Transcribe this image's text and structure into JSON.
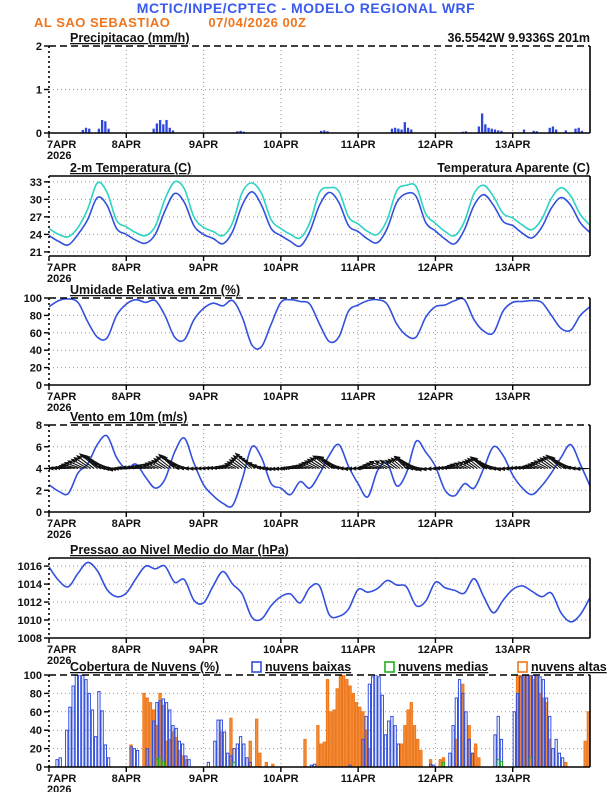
{
  "header": {
    "title": "MCTIC/INPE/CPTEC - MODELO REGIONAL WRF",
    "station": "AL SAO SEBASTIAO",
    "run_datetime": "07/04/2026 00Z",
    "location": "36.5542W 9.9336S 201m",
    "title_color": "#3b5bee",
    "subtitle_color": "#f0761e"
  },
  "x_axis": {
    "day_labels": [
      "7APR",
      "8APR",
      "9APR",
      "10APR",
      "11APR",
      "12APR",
      "13APR"
    ],
    "year": "2026",
    "hours_total": 168
  },
  "chart_data": [
    {
      "id": "precipitation",
      "type": "bar",
      "title": "Precipitacao (mm/h)",
      "right_label": {
        "text": "36.5542W 9.9336S 201m",
        "color": "#f0761e"
      },
      "ylim": [
        0,
        2
      ],
      "yticks": [
        0,
        1,
        2
      ],
      "step_hours": 1,
      "bar_color": "#2f46dd",
      "values": [
        0,
        0,
        0,
        0,
        0,
        0,
        0,
        0,
        0,
        0,
        0.07,
        0.12,
        0.1,
        0,
        0,
        0.1,
        0.3,
        0.27,
        0.1,
        0,
        0,
        0,
        0,
        0,
        0,
        0,
        0,
        0,
        0,
        0,
        0,
        0,
        0.1,
        0.22,
        0.3,
        0.2,
        0.3,
        0.12,
        0.06,
        0,
        0,
        0,
        0,
        0,
        0,
        0,
        0,
        0,
        0,
        0,
        0,
        0,
        0,
        0,
        0,
        0,
        0,
        0,
        0.04,
        0.05,
        0.03,
        0,
        0,
        0,
        0,
        0,
        0,
        0,
        0,
        0,
        0,
        0,
        0,
        0,
        0,
        0,
        0,
        0,
        0,
        0,
        0,
        0,
        0,
        0,
        0.05,
        0.06,
        0.04,
        0,
        0,
        0,
        0,
        0,
        0,
        0,
        0,
        0,
        0,
        0,
        0,
        0,
        0,
        0,
        0,
        0,
        0,
        0,
        0.1,
        0.12,
        0.1,
        0.08,
        0.25,
        0.12,
        0.08,
        0,
        0,
        0,
        0,
        0,
        0,
        0,
        0,
        0,
        0,
        0,
        0,
        0,
        0,
        0,
        0.03,
        0.04,
        0,
        0,
        0,
        0.15,
        0.45,
        0.2,
        0.12,
        0.1,
        0.08,
        0.06,
        0.05,
        0,
        0,
        0,
        0,
        0,
        0,
        0.08,
        0,
        0,
        0.05,
        0.04,
        0,
        0,
        0,
        0.12,
        0.15,
        0.08,
        0,
        0,
        0.06,
        0,
        0,
        0.1,
        0.12,
        0.05,
        0,
        0
      ]
    },
    {
      "id": "temperature",
      "type": "line",
      "title": "2-m Temperatura (C)",
      "right_label": {
        "text": "Temperatura Aparente (C)",
        "color": "#2ed3c3"
      },
      "ylim": [
        20.3,
        34
      ],
      "yticks": [
        21,
        24,
        27,
        30,
        33
      ],
      "step_hours": 3,
      "series": [
        {
          "name": "Temperatura Aparente (C)",
          "color": "#2ed3c3",
          "values": [
            25.0,
            24.0,
            23.6,
            25.2,
            28.3,
            32.8,
            31.2,
            26.4,
            25.3,
            24.3,
            23.8,
            25.4,
            30.0,
            33.0,
            31.8,
            27.0,
            25.2,
            24.5,
            23.8,
            26.0,
            31.2,
            32.8,
            31.0,
            26.5,
            25.0,
            24.0,
            23.4,
            26.0,
            31.2,
            32.0,
            31.4,
            27.0,
            25.8,
            24.5,
            24.0,
            26.5,
            31.5,
            32.4,
            32.2,
            27.5,
            25.9,
            24.5,
            23.8,
            26.2,
            31.0,
            32.4,
            30.5,
            27.6,
            26.8,
            25.6,
            24.8,
            26.6,
            30.2,
            32.0,
            30.6,
            27.4,
            25.6
          ]
        },
        {
          "name": "2-m Temperatura (C)",
          "color": "#3350dd",
          "values": [
            23.8,
            22.8,
            22.2,
            24.0,
            26.5,
            30.3,
            29.0,
            25.0,
            24.0,
            23.0,
            22.5,
            24.0,
            28.0,
            31.0,
            29.5,
            25.5,
            24.0,
            23.3,
            22.4,
            24.5,
            29.0,
            31.3,
            29.0,
            25.0,
            23.8,
            22.8,
            22.0,
            24.5,
            29.0,
            31.2,
            29.5,
            25.5,
            24.5,
            23.2,
            22.6,
            25.0,
            29.5,
            31.0,
            30.5,
            26.0,
            24.6,
            23.2,
            22.4,
            24.8,
            29.0,
            30.8,
            29.0,
            26.2,
            25.5,
            24.2,
            23.4,
            25.2,
            28.5,
            30.3,
            29.0,
            26.0,
            24.3
          ]
        }
      ]
    },
    {
      "id": "humidity",
      "type": "line",
      "title": "Umidade Relativa em 2m (%)",
      "ylim": [
        0,
        100
      ],
      "yticks": [
        0,
        20,
        40,
        60,
        80,
        100
      ],
      "step_hours": 3,
      "series": [
        {
          "name": "Umidade Relativa em 2m (%)",
          "color": "#3350dd",
          "values": [
            90,
            97,
            99,
            95,
            73,
            55,
            54,
            80,
            93,
            98,
            95,
            97,
            80,
            55,
            52,
            75,
            88,
            94,
            91,
            97,
            78,
            46,
            44,
            70,
            95,
            98,
            96,
            93,
            70,
            50,
            55,
            85,
            92,
            97,
            98,
            93,
            70,
            57,
            55,
            78,
            90,
            92,
            97,
            98,
            75,
            62,
            60,
            85,
            95,
            96,
            97,
            95,
            80,
            65,
            63,
            80,
            90
          ]
        }
      ]
    },
    {
      "id": "wind",
      "type": "line",
      "title": "Vento em 10m (m/s)",
      "ylim": [
        0,
        8
      ],
      "yticks": [
        0,
        2,
        4,
        6,
        8
      ],
      "step_hours": 3,
      "series": [
        {
          "name": "Vento em 10m (m/s)",
          "color": "#3350dd",
          "values": [
            2.5,
            1.9,
            1.7,
            3.6,
            4.4,
            6.2,
            7.0,
            5.0,
            4.0,
            4.4,
            3.2,
            2.2,
            3.0,
            5.5,
            6.8,
            4.5,
            2.5,
            1.5,
            0.8,
            0.6,
            3.0,
            6.0,
            5.0,
            2.6,
            2.2,
            1.6,
            2.8,
            2.2,
            3.5,
            5.2,
            6.2,
            4.2,
            2.6,
            1.4,
            3.8,
            4.5,
            2.4,
            3.6,
            6.5,
            5.5,
            4.2,
            2.0,
            1.5,
            2.6,
            2.2,
            4.0,
            6.0,
            5.2,
            3.4,
            2.2,
            1.6,
            2.4,
            3.6,
            5.0,
            6.2,
            4.4,
            2.4
          ]
        }
      ],
      "vectors": {
        "anchor_value": 4,
        "color": "#111111",
        "directions_deg": [
          182,
          180,
          176,
          165,
          150,
          140,
          150,
          175,
          184,
          178,
          174,
          162,
          148,
          138,
          152,
          178,
          181,
          179,
          175,
          160,
          145,
          137,
          155,
          176,
          183,
          181,
          177,
          166,
          152,
          142,
          148,
          174,
          182,
          179,
          173,
          158,
          144,
          136,
          150,
          177,
          184,
          180,
          175,
          163,
          147,
          139,
          153,
          176,
          183,
          178,
          174,
          161,
          146,
          138,
          151,
          175,
          182
        ]
      }
    },
    {
      "id": "pressure",
      "type": "line",
      "title": "Pressao ao Nivel Medio do Mar (hPa)",
      "ylim": [
        1008,
        1016.9
      ],
      "yticks": [
        1008,
        1010,
        1012,
        1014,
        1016
      ],
      "step_hours": 3,
      "series": [
        {
          "name": "Pressao ao Nivel Medio do Mar (hPa)",
          "color": "#3350dd",
          "values": [
            1015.9,
            1014.4,
            1013.7,
            1015.2,
            1016.4,
            1015.5,
            1013.4,
            1012.6,
            1013.0,
            1014.6,
            1016.0,
            1015.7,
            1016.0,
            1014.2,
            1014.5,
            1012.2,
            1011.9,
            1013.8,
            1015.4,
            1014.0,
            1012.9,
            1010.3,
            1010.1,
            1011.6,
            1012.6,
            1012.9,
            1011.9,
            1013.6,
            1013.8,
            1010.6,
            1010.4,
            1011.2,
            1013.4,
            1013.1,
            1013.5,
            1014.4,
            1013.9,
            1013.7,
            1011.6,
            1012.1,
            1014.2,
            1013.6,
            1013.3,
            1013.0,
            1014.6,
            1012.6,
            1010.8,
            1012.2,
            1013.4,
            1013.8,
            1013.2,
            1012.6,
            1013.0,
            1010.8,
            1009.8,
            1010.6,
            1012.5
          ]
        }
      ]
    },
    {
      "id": "clouds",
      "type": "bar-multi",
      "title": "Cobertura de Nuvens (%)",
      "ylim": [
        0,
        100
      ],
      "yticks": [
        0,
        20,
        40,
        60,
        80,
        100
      ],
      "step_hours": 1,
      "legend": [
        {
          "label": "nuvens baixas",
          "color": "#3350dd"
        },
        {
          "label": "nuvens medias",
          "color": "#1faf1f"
        },
        {
          "label": "nuvens altas",
          "color": "#ee7518"
        }
      ],
      "series": [
        {
          "name": "nuvens altas",
          "stroke": "#ee7518",
          "fill": "#f29040",
          "values": [
            0,
            0,
            0,
            0,
            0,
            0,
            0,
            0,
            0,
            0,
            0,
            0,
            0,
            0,
            0,
            0,
            0,
            0,
            0,
            0,
            0,
            0,
            0,
            0,
            0,
            24,
            0,
            0,
            0,
            80,
            75,
            70,
            62,
            45,
            80,
            67,
            28,
            30,
            38,
            32,
            18,
            12,
            8,
            0,
            0,
            0,
            0,
            0,
            0,
            0,
            0,
            0,
            0,
            38,
            0,
            0,
            53,
            0,
            0,
            0,
            0,
            0,
            28,
            0,
            52,
            15,
            0,
            5,
            0,
            3,
            0,
            0,
            0,
            0,
            0,
            0,
            0,
            0,
            0,
            30,
            0,
            0,
            0,
            45,
            25,
            27,
            95,
            60,
            62,
            85,
            100,
            100,
            95,
            88,
            80,
            70,
            65,
            60,
            40,
            20,
            0,
            0,
            0,
            0,
            0,
            0,
            0,
            0,
            0,
            25,
            45,
            62,
            70,
            45,
            30,
            18,
            0,
            0,
            8,
            0,
            0,
            8,
            10,
            0,
            0,
            0,
            30,
            0,
            90,
            0,
            45,
            15,
            25,
            10,
            0,
            0,
            0,
            0,
            0,
            0,
            0,
            0,
            0,
            0,
            0,
            100,
            100,
            100,
            100,
            100,
            95,
            100,
            80,
            75,
            70,
            30,
            0,
            0,
            0,
            0,
            5,
            0,
            0,
            0,
            0,
            0,
            28,
            60
          ]
        },
        {
          "name": "nuvens baixas",
          "stroke": "#3350dd",
          "fill": "none",
          "values": [
            0,
            0,
            8,
            10,
            0,
            40,
            65,
            88,
            100,
            100,
            100,
            95,
            80,
            62,
            33,
            82,
            61,
            24,
            10,
            0,
            0,
            0,
            0,
            0,
            0,
            22,
            20,
            18,
            0,
            0,
            20,
            0,
            50,
            70,
            72,
            74,
            70,
            62,
            45,
            42,
            28,
            25,
            12,
            8,
            0,
            0,
            0,
            0,
            0,
            5,
            0,
            28,
            51,
            51,
            38,
            15,
            12,
            20,
            25,
            33,
            25,
            10,
            5,
            0,
            0,
            0,
            0,
            0,
            0,
            0,
            0,
            0,
            0,
            0,
            0,
            0,
            0,
            0,
            0,
            0,
            0,
            2,
            3,
            0,
            0,
            0,
            0,
            0,
            0,
            0,
            0,
            0,
            0,
            2,
            0,
            0,
            0,
            30,
            55,
            90,
            98,
            100,
            98,
            78,
            35,
            50,
            55,
            45,
            25,
            0,
            0,
            0,
            0,
            0,
            0,
            0,
            0,
            0,
            3,
            2,
            0,
            0,
            0,
            0,
            15,
            45,
            75,
            95,
            80,
            60,
            30,
            15,
            0,
            0,
            0,
            0,
            0,
            0,
            35,
            55,
            30,
            0,
            0,
            0,
            60,
            80,
            98,
            100,
            100,
            100,
            100,
            100,
            98,
            95,
            75,
            55,
            20,
            30,
            15,
            10,
            0,
            0,
            0,
            0,
            0,
            0,
            0,
            0
          ]
        },
        {
          "name": "nuvens medias",
          "stroke": "#1faf1f",
          "fill": "none",
          "values": [
            0,
            0,
            0,
            0,
            0,
            0,
            0,
            0,
            0,
            0,
            0,
            0,
            0,
            0,
            0,
            0,
            0,
            0,
            0,
            0,
            0,
            0,
            0,
            0,
            0,
            0,
            0,
            0,
            0,
            0,
            0,
            0,
            0,
            8,
            10,
            6,
            0,
            0,
            0,
            0,
            0,
            0,
            0,
            0,
            0,
            0,
            0,
            0,
            0,
            0,
            0,
            0,
            0,
            0,
            0,
            0,
            0,
            5,
            0,
            0,
            0,
            0,
            0,
            0,
            0,
            0,
            0,
            0,
            0,
            0,
            0,
            0,
            0,
            0,
            0,
            0,
            0,
            0,
            0,
            0,
            0,
            0,
            0,
            0,
            0,
            0,
            0,
            0,
            0,
            0,
            0,
            0,
            0,
            0,
            0,
            0,
            0,
            0,
            0,
            0,
            0,
            0,
            0,
            0,
            0,
            0,
            0,
            0,
            0,
            0,
            0,
            0,
            0,
            0,
            0,
            0,
            0,
            0,
            0,
            0,
            0,
            0,
            5,
            0,
            0,
            0,
            0,
            0,
            0,
            0,
            0,
            0,
            0,
            0,
            0,
            0,
            0,
            0,
            0,
            8,
            6,
            0,
            0,
            0,
            0,
            0,
            0,
            0,
            0,
            10,
            0,
            0,
            0,
            0,
            0,
            0,
            0,
            0,
            0,
            0,
            0,
            0,
            0,
            0,
            0,
            0,
            0,
            0
          ]
        }
      ]
    }
  ]
}
